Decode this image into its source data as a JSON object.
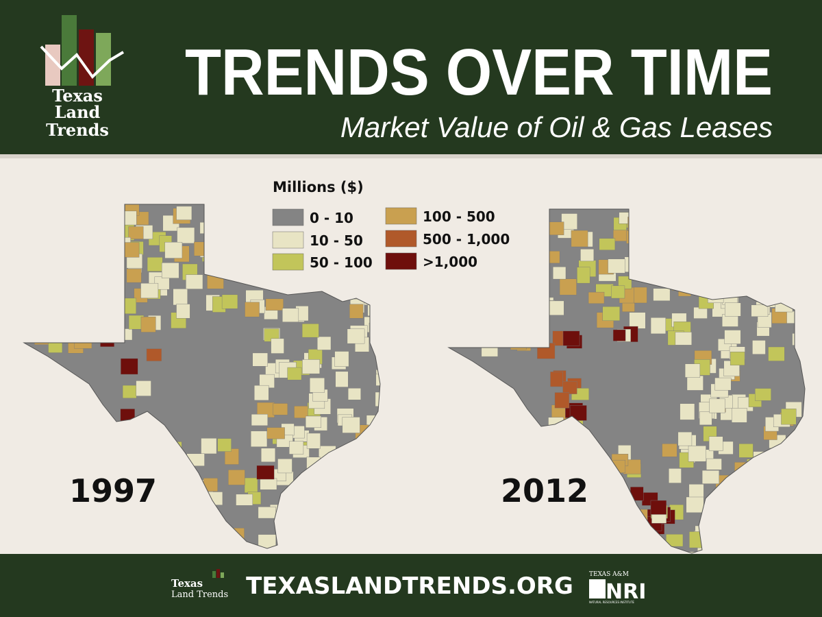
{
  "header": {
    "logo": [
      "Texas",
      "Land",
      "Trends"
    ],
    "title": "TRENDS OVER TIME",
    "subtitle": "Market Value of Oil & Gas Leases"
  },
  "legend": {
    "title": "Millions ($)",
    "items": [
      {
        "label": "0 - 10",
        "color": "#848484"
      },
      {
        "label": "10 - 50",
        "color": "#e8e4c4"
      },
      {
        "label": "50 - 100",
        "color": "#c2c55a"
      },
      {
        "label": "100 - 500",
        "color": "#c9a050"
      },
      {
        "label": "500 - 1,000",
        "color": "#b0592a"
      },
      {
        "label": ">1,000",
        "color": "#6e0f0c"
      }
    ]
  },
  "maps": [
    {
      "year": "1997"
    },
    {
      "year": "2012"
    }
  ],
  "footer": {
    "logo": [
      "Texas",
      "Land Trends"
    ],
    "url": "TEXASLANDTRENDS.ORG",
    "partner_top": "TEXAS A&M",
    "partner": "NRI",
    "partner_bottom": "NATURAL RESOURCES INSTITUTE"
  }
}
